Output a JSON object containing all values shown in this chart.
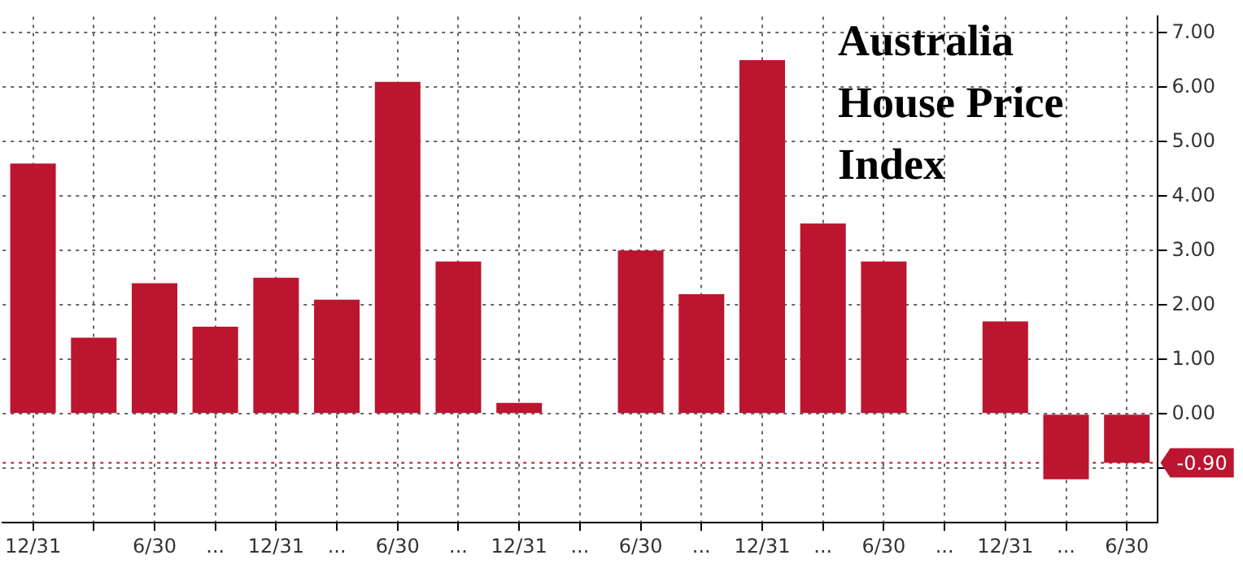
{
  "chart_data": {
    "type": "bar",
    "title": "Australia House Price Index",
    "categories": [
      "12/31",
      null,
      "6/30",
      "...",
      "12/31",
      "...",
      "6/30",
      "...",
      "12/31",
      "...",
      "6/30",
      "...",
      "12/31",
      "...",
      "6/30",
      "...",
      "12/31",
      "...",
      "6/30"
    ],
    "values": [
      4.6,
      1.4,
      2.4,
      1.6,
      2.5,
      2.1,
      6.1,
      2.8,
      0.2,
      0,
      3.0,
      2.2,
      6.5,
      3.5,
      2.8,
      0,
      1.7,
      -1.2,
      -0.9
    ],
    "color": "#bb1530",
    "ylim": [
      -2,
      7.3
    ],
    "yticks": [
      {
        "value": -1,
        "label": null
      },
      {
        "value": 0,
        "label": "0.00"
      },
      {
        "value": 1,
        "label": "1.00"
      },
      {
        "value": 2,
        "label": "2.00"
      },
      {
        "value": 3,
        "label": "3.00"
      },
      {
        "value": 4,
        "label": "4.00"
      },
      {
        "value": 5,
        "label": "5.00"
      },
      {
        "value": 6,
        "label": "6.00"
      },
      {
        "value": 7,
        "label": "7.00"
      }
    ],
    "ref_lines": [
      {
        "axis": "y",
        "value": -0.9,
        "label": "-0.90",
        "color": "#bb1530",
        "line_style": "dotted"
      }
    ],
    "grid": true,
    "legend": false
  }
}
